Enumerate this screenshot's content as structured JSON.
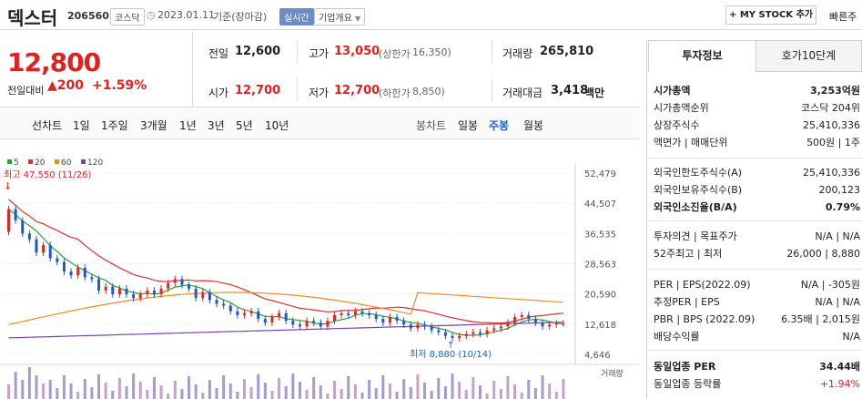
{
  "header": {
    "name": "덱스터",
    "code": "206560",
    "market": "코스닥",
    "date": "2023.01.11",
    "basis": "기준(장마감)",
    "realtime": "실시간",
    "company_info": "기업개요",
    "my_stock": "MY STOCK 추가",
    "quick": "빠른주"
  },
  "quote": {
    "price": "12,800",
    "change_label": "전일대비",
    "change": "200",
    "change_pct": "+1.59%",
    "prev_label": "전일",
    "prev": "12,600",
    "high_label": "고가",
    "high": "13,050",
    "upper_label": "(상한가",
    "upper": "16,350)",
    "volume_label": "거래량",
    "volume": "265,810",
    "open_label": "시가",
    "open": "12,700",
    "low_label": "저가",
    "low": "12,700",
    "lower_label": "(하한가",
    "lower": "8,850)",
    "amount_label": "거래대금",
    "amount": "3,418",
    "amount_unit": "백만"
  },
  "periods": {
    "line_label": "선차트",
    "line_items": [
      "1일",
      "1주일",
      "3개월",
      "1년",
      "3년",
      "5년",
      "10년"
    ],
    "candle_label": "봉차트",
    "candle_items": [
      "일봉",
      "주봉",
      "월봉"
    ],
    "active": "주봉"
  },
  "chart_data": {
    "type": "candlestick",
    "legend": [
      {
        "name": "5",
        "color": "#2ca02c"
      },
      {
        "name": "20",
        "color": "#e03030"
      },
      {
        "name": "60",
        "color": "#f08a24"
      },
      {
        "name": "120",
        "color": "#8040b0"
      }
    ],
    "y_ticks": [
      "52,479",
      "44,507",
      "36,535",
      "28,563",
      "20,590",
      "12,618",
      "4,646"
    ],
    "ylim": [
      4646,
      52479
    ],
    "max_label": "최고 47,550 (11/26)",
    "min_label": "최저 8,880 (10/14)",
    "volume_label": "거래량",
    "close": [
      43000,
      40000,
      36500,
      35000,
      31500,
      33500,
      30000,
      29000,
      26500,
      25500,
      27500,
      25000,
      24500,
      21500,
      22500,
      20500,
      22000,
      20500,
      19500,
      20500,
      21500,
      20500,
      22000,
      23500,
      24500,
      23000,
      22000,
      19500,
      21000,
      19000,
      18000,
      17500,
      16000,
      15000,
      15500,
      16000,
      14000,
      13000,
      14500,
      15500,
      13500,
      12500,
      12000,
      13500,
      13000,
      12000,
      13500,
      15000,
      15500,
      15000,
      16000,
      15500,
      15000,
      14000,
      13000,
      14500,
      13500,
      12500,
      11500,
      12500,
      12000,
      11000,
      10500,
      9500,
      9000,
      9500,
      10000,
      10500,
      10000,
      11000,
      11500,
      12000,
      13000,
      14500,
      15000,
      14000,
      13000,
      12000,
      12500,
      12800,
      12800
    ]
  },
  "panel": {
    "tab_info": "투자정보",
    "tab_orderbook": "호가10단계",
    "rows1": [
      {
        "label": "시가총액",
        "value": "3,253억원",
        "bold": true
      },
      {
        "label": "시가총액순위",
        "value": "코스닥 204위"
      },
      {
        "label": "상장주식수",
        "value": "25,410,336"
      },
      {
        "label": "액면가 | 매매단위",
        "value": "500원 | 1주"
      }
    ],
    "rows2": [
      {
        "label": "외국인한도주식수(A)",
        "value": "25,410,336"
      },
      {
        "label": "외국인보유주식수(B)",
        "value": "200,123"
      },
      {
        "label": "외국인소진율(B/A)",
        "value": "0.79%",
        "bold": true
      }
    ],
    "rows3": [
      {
        "label": "투자의견 | 목표주가",
        "value": "N/A | N/A"
      },
      {
        "label": "52주최고 | 최저",
        "value": "26,000 | 8,880"
      }
    ],
    "rows4": [
      {
        "label": "PER | EPS(2022.09)",
        "value": "N/A | -305원"
      },
      {
        "label": "추정PER | EPS",
        "value": "N/A | N/A"
      },
      {
        "label": "PBR | BPS (2022.09)",
        "value": "6.35배 | 2,015원"
      },
      {
        "label": "배당수익률",
        "value": "N/A"
      }
    ],
    "rows5": [
      {
        "label": "동일업종 PER",
        "value": "34.44배",
        "bold": true
      },
      {
        "label": "동일업종 등락률",
        "value": "+1.94%",
        "red": true
      }
    ]
  }
}
